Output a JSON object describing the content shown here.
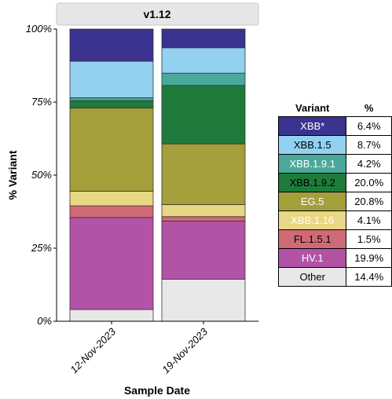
{
  "chart_data": {
    "type": "bar",
    "stacked": true,
    "facet_title": "v1.12",
    "xlabel": "Sample Date",
    "ylabel": "% Variant",
    "ylim": [
      0,
      100
    ],
    "y_ticks": [
      "0%",
      "25%",
      "50%",
      "75%",
      "100%"
    ],
    "categories": [
      "12-Nov-2023",
      "19-Nov-2023"
    ],
    "series": [
      {
        "name": "Other",
        "color": "#e8e8e8",
        "values": [
          4.0,
          14.4
        ]
      },
      {
        "name": "HV.1",
        "color": "#b353a6",
        "values": [
          31.5,
          19.9
        ]
      },
      {
        "name": "FL.1.5.1",
        "color": "#d06a76",
        "values": [
          4.0,
          1.5
        ]
      },
      {
        "name": "XBB.1.16",
        "color": "#e8d784",
        "values": [
          5.0,
          4.1
        ]
      },
      {
        "name": "EG.5",
        "color": "#a3a03b",
        "values": [
          28.5,
          20.8
        ]
      },
      {
        "name": "XBB.1.9.2",
        "color": "#1e7b3c",
        "values": [
          2.5,
          20.0
        ]
      },
      {
        "name": "XBB.1.9.1",
        "color": "#4aa99b",
        "values": [
          1.0,
          4.2
        ]
      },
      {
        "name": "XBB.1.5",
        "color": "#93d1f0",
        "values": [
          12.5,
          8.7
        ]
      },
      {
        "name": "XBB*",
        "color": "#3a3390",
        "values": [
          11.0,
          6.4
        ]
      }
    ],
    "legend": {
      "position": "right",
      "header_variant": "Variant",
      "header_pct": "%",
      "rows": [
        {
          "name": "XBB*",
          "pct": "6.4%",
          "color": "#3a3390",
          "text_color": "#ffffff"
        },
        {
          "name": "XBB.1.5",
          "pct": "8.7%",
          "color": "#93d1f0",
          "text_color": "#000000"
        },
        {
          "name": "XBB.1.9.1",
          "pct": "4.2%",
          "color": "#4aa99b",
          "text_color": "#ffffff"
        },
        {
          "name": "XBB.1.9.2",
          "pct": "20.0%",
          "color": "#1e7b3c",
          "text_color": "#000000"
        },
        {
          "name": "EG.5",
          "pct": "20.8%",
          "color": "#a3a03b",
          "text_color": "#ffffff"
        },
        {
          "name": "XBB.1.16",
          "pct": "4.1%",
          "color": "#e8d784",
          "text_color": "#ffffff"
        },
        {
          "name": "FL.1.5.1",
          "pct": "1.5%",
          "color": "#d06a76",
          "text_color": "#000000"
        },
        {
          "name": "HV.1",
          "pct": "19.9%",
          "color": "#b353a6",
          "text_color": "#ffffff"
        },
        {
          "name": "Other",
          "pct": "14.4%",
          "color": "#e8e8e8",
          "text_color": "#000000"
        }
      ]
    }
  }
}
